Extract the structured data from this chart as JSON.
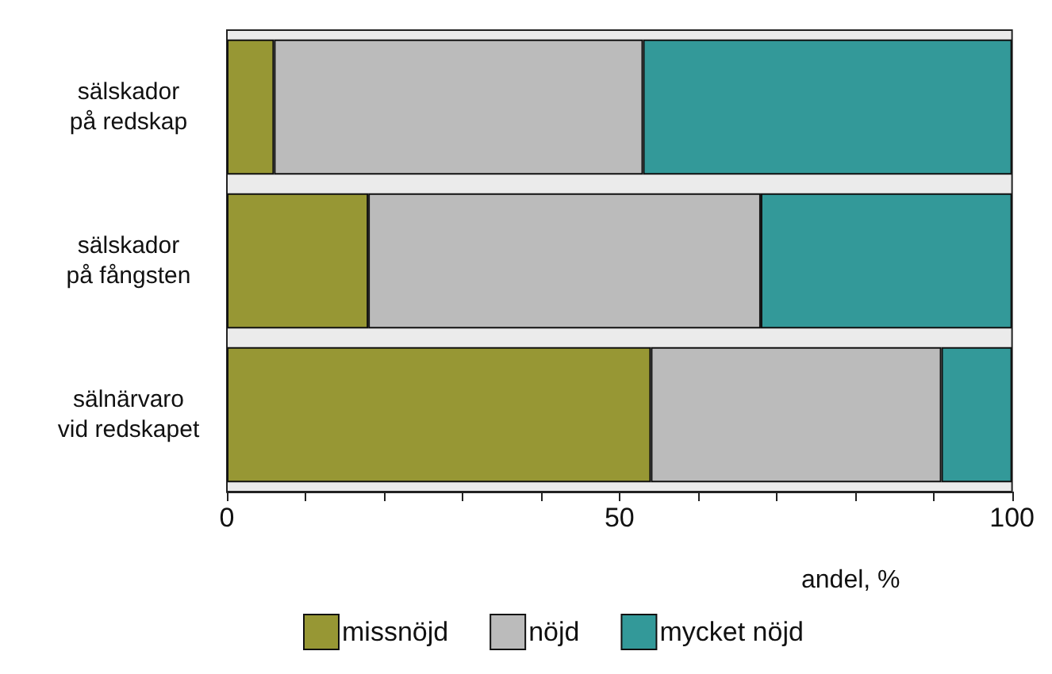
{
  "chart_data": {
    "type": "bar",
    "orientation": "horizontal",
    "stacked": true,
    "categories": [
      "sälskador\npå redskap",
      "sälskador\npå fångsten",
      "sälnärvaro\nvid redskapet"
    ],
    "series": [
      {
        "name": "missnöjd",
        "color": "#979734",
        "values": [
          6,
          18,
          54
        ]
      },
      {
        "name": "nöjd",
        "color": "#bbbbbb",
        "values": [
          47,
          50,
          37
        ]
      },
      {
        "name": "mycket nöjd",
        "color": "#339999",
        "values": [
          47,
          32,
          9
        ]
      }
    ],
    "xlabel": "andel, %",
    "xlim": [
      0,
      100
    ],
    "xticks": [
      0,
      {
        "value": 10,
        "label": null
      },
      {
        "value": 20,
        "label": null
      },
      {
        "value": 30,
        "label": null
      },
      {
        "value": 40,
        "label": null
      },
      50,
      {
        "value": 60,
        "label": null
      },
      {
        "value": 70,
        "label": null
      },
      {
        "value": 80,
        "label": null
      },
      {
        "value": 90,
        "label": null
      },
      100
    ],
    "grid": false,
    "legend": "bottom"
  }
}
